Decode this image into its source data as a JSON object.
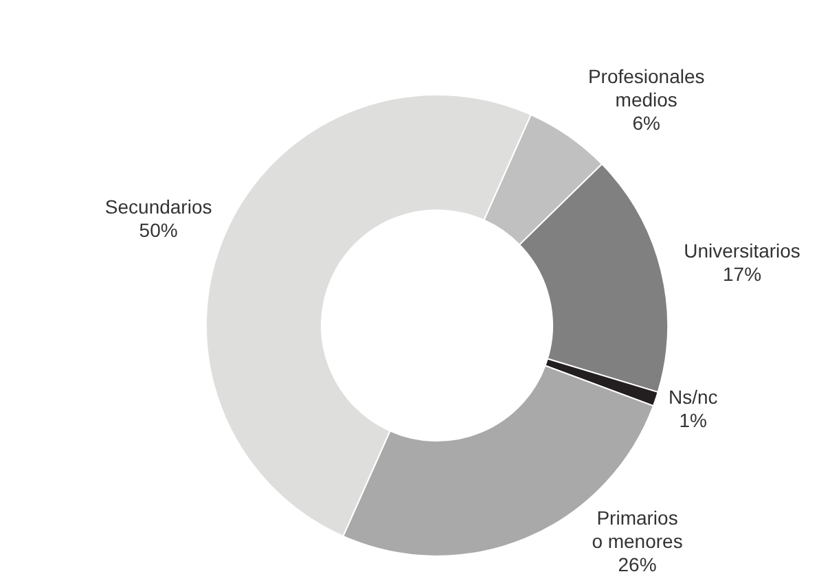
{
  "chart_data": {
    "type": "donut",
    "categories": [
      "Profesionales\nmedios",
      "Universitarios",
      "Ns/nc",
      "Primarios\no menores",
      "Secundarios"
    ],
    "values": [
      6,
      17,
      1,
      26,
      50
    ],
    "colors": [
      "#c0c0c0",
      "#808080",
      "#231f20",
      "#a9a9a9",
      "#dededc"
    ],
    "value_labels": [
      "6%",
      "17%",
      "1%",
      "26%",
      "50%"
    ]
  }
}
